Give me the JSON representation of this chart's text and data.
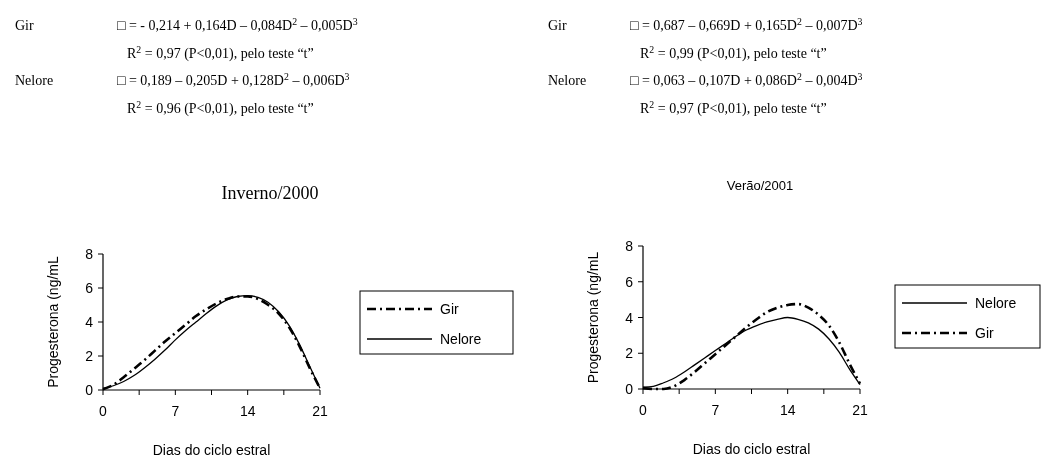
{
  "chart_data": [
    {
      "type": "line",
      "title": "Inverno/2000",
      "xlabel": "Dias do ciclo estral",
      "ylabel": "Progesterona (ng/mL",
      "xlim": [
        0,
        21
      ],
      "ylim": [
        0,
        8
      ],
      "xticks": [
        0,
        {
          "value": 3.5,
          "label": null
        },
        7,
        {
          "value": 10.5,
          "label": null
        },
        14,
        {
          "value": 17.5,
          "label": null
        },
        21
      ],
      "yticks": [
        0,
        2,
        4,
        6,
        8
      ],
      "grid": false,
      "legend": "right",
      "marker": "none",
      "annotations": [
        "Gir",
        "□ = - 0,214 + 0,164D – 0,084D$^{2}$ – 0,005D$^{3}$",
        "R$^{2}$ = 0,97 (P<0,01), pelo teste “t”",
        "Nelore",
        "□ = 0,189 – 0,205D + 0,128D$^{2}$ – 0,006D$^{3}$",
        "R$^{2}$ = 0,96 (P<0,01), pelo teste “t”"
      ],
      "x": [
        0,
        1,
        2,
        3,
        4,
        5,
        6,
        7,
        8,
        9,
        10,
        11,
        12,
        13,
        14,
        15,
        16,
        17,
        18,
        19,
        20,
        21
      ],
      "series": [
        {
          "name": "Gir",
          "color": "#000000",
          "line_style": "dashed",
          "values": [
            0.05,
            0.3,
            0.75,
            1.25,
            1.75,
            2.3,
            2.85,
            3.35,
            3.85,
            4.35,
            4.75,
            5.1,
            5.35,
            5.5,
            5.5,
            5.35,
            5.0,
            4.5,
            3.7,
            2.6,
            1.3,
            0.1
          ]
        },
        {
          "name": "Nelore",
          "color": "#000000",
          "line_style": "solid",
          "values": [
            0.1,
            0.25,
            0.5,
            0.85,
            1.3,
            1.8,
            2.35,
            2.95,
            3.5,
            4.0,
            4.5,
            4.95,
            5.3,
            5.5,
            5.55,
            5.45,
            5.15,
            4.6,
            3.8,
            2.7,
            1.4,
            0.1
          ]
        }
      ]
    },
    {
      "type": "line",
      "title": "Verão/2001",
      "xlabel": "Dias do ciclo estral",
      "ylabel": "Progesterona (ng/mL",
      "xlim": [
        0,
        21
      ],
      "ylim": [
        0,
        8
      ],
      "xticks": [
        0,
        {
          "value": 3.5,
          "label": null
        },
        7,
        {
          "value": 10.5,
          "label": null
        },
        14,
        {
          "value": 17.5,
          "label": null
        },
        21
      ],
      "yticks": [
        0,
        2,
        4,
        6,
        8
      ],
      "grid": false,
      "legend": "right",
      "marker": "none",
      "annotations": [
        "Gir",
        "□ = 0,687 – 0,669D + 0,165D$^{2}$ – 0,007D$^{3}$",
        "R$^{2}$ = 0,99 (P<0,01), pelo teste “t”",
        "Nelore",
        "□ = 0,063 – 0,107D + 0,086D$^{2}$ – 0,004D$^{3}$",
        "R$^{2}$ = 0,97 (P<0,01), pelo teste “t”"
      ],
      "x": [
        0,
        1,
        2,
        3,
        4,
        5,
        6,
        7,
        8,
        9,
        10,
        11,
        12,
        13,
        14,
        15,
        16,
        17,
        18,
        19,
        20,
        21
      ],
      "series": [
        {
          "name": "Nelore",
          "color": "#000000",
          "line_style": "solid",
          "values": [
            0.1,
            0.15,
            0.35,
            0.6,
            0.95,
            1.35,
            1.75,
            2.15,
            2.55,
            2.95,
            3.3,
            3.55,
            3.75,
            3.9,
            4.0,
            3.9,
            3.7,
            3.35,
            2.8,
            2.05,
            1.1,
            0.25
          ]
        },
        {
          "name": "Gir",
          "color": "#000000",
          "line_style": "dashed",
          "values": [
            0.05,
            0,
            0,
            0.15,
            0.5,
            0.95,
            1.45,
            1.95,
            2.45,
            2.95,
            3.45,
            3.9,
            4.3,
            4.55,
            4.7,
            4.75,
            4.55,
            4.15,
            3.55,
            2.6,
            1.4,
            0.3
          ]
        }
      ]
    }
  ]
}
